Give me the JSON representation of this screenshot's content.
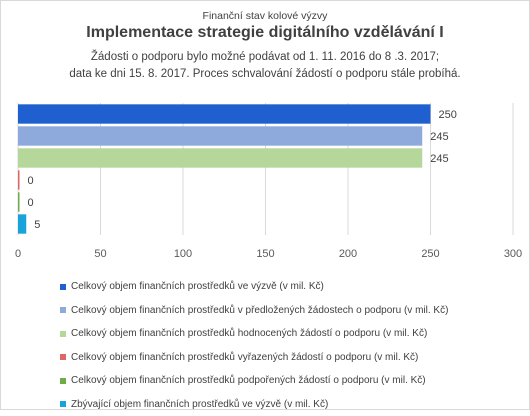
{
  "header": {
    "kicker": "Finanční stav kolové výzvy",
    "title": "Implementace strategie digitálního vzdělávání I",
    "subtitle_line1": "Žádosti o podporu bylo možné  podávat od 1. 11. 2016 do 8 .3. 2017;",
    "subtitle_line2": "data ke dni 15. 8. 2017. Proces schvalování žádostí o podporu stále probíhá."
  },
  "chart_data": {
    "type": "bar",
    "orientation": "horizontal",
    "xlim": [
      0,
      300
    ],
    "x_ticks": [
      0,
      50,
      100,
      150,
      200,
      250,
      300
    ],
    "grid": true,
    "legend_position": "bottom",
    "series": [
      {
        "name": "Celkový objem finančních prostředků ve výzvě (v mil. Kč)",
        "value": 250,
        "label": "250",
        "color": "#1f5fcf"
      },
      {
        "name": "Celkový objem finančních prostředků v předložených žádostech o podporu (v mil. Kč)",
        "value": 245,
        "label": "245",
        "color": "#8ea9db"
      },
      {
        "name": "Celkový objem finančních prostředků hodnocených žádostí o podporu (v mil. Kč)",
        "value": 245,
        "label": "245",
        "color": "#b5d89a"
      },
      {
        "name": "Celkový objem finančních prostředků vyřazených žádostí o podporu (v mil. Kč)",
        "value": 0,
        "label": "0",
        "color": "#e06666"
      },
      {
        "name": "Celkový objem finančních prostředků podpořených žádostí o podporu (v mil. Kč)",
        "value": 0,
        "label": "0",
        "color": "#70ad47"
      },
      {
        "name": "Zbývající objem finančních prostředků ve výzvě (v mil. Kč)",
        "value": 5,
        "label": "5",
        "color": "#1aa3d9"
      }
    ]
  }
}
